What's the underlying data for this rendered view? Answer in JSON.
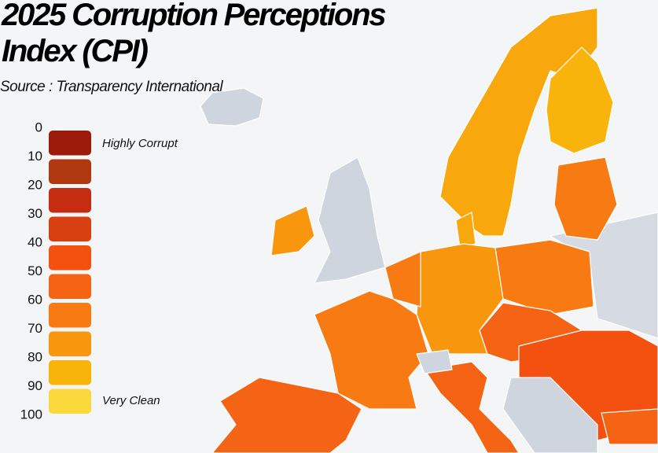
{
  "header": {
    "title": "2025 Corruption Perceptions Index (CPI)",
    "subtitle": "Source : Transparency International"
  },
  "legend": {
    "ticks": [
      0,
      10,
      20,
      30,
      40,
      50,
      60,
      70,
      80,
      90,
      100
    ],
    "colors": [
      "#9b1a0a",
      "#b0380e",
      "#c42d10",
      "#d9400f",
      "#f4500f",
      "#f56414",
      "#f77a12",
      "#f8960e",
      "#f9b40c",
      "#fbd83c"
    ],
    "low_label": "Highly Corrupt",
    "high_label": "Very Clean"
  }
}
